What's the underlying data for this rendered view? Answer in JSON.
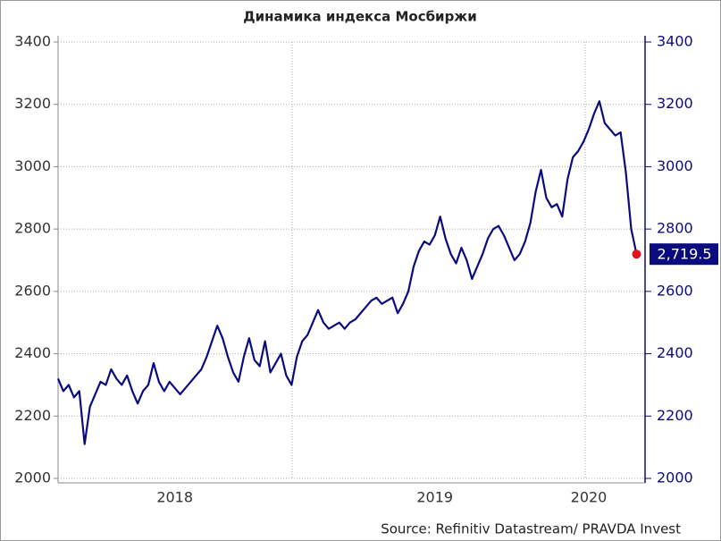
{
  "chart_data": {
    "type": "line",
    "title": "Динамика индекса Мосбиржи",
    "source": "Source: Refinitiv Datastream/ PRAVDA Invest",
    "categories": [
      null,
      null,
      null,
      null,
      null,
      null,
      null,
      null,
      null,
      null,
      null,
      null,
      null,
      null,
      null,
      null,
      null,
      null,
      null,
      null,
      null,
      null,
      "2018",
      null,
      null,
      null,
      null,
      null,
      null,
      null,
      null,
      null,
      null,
      null,
      null,
      null,
      null,
      null,
      null,
      null,
      null,
      null,
      null,
      null,
      null,
      null,
      null,
      null,
      null,
      null,
      null,
      null,
      null,
      null,
      null,
      null,
      null,
      null,
      null,
      null,
      null,
      null,
      null,
      null,
      null,
      null,
      null,
      null,
      null,
      null,
      null,
      "2019",
      null,
      null,
      null,
      null,
      null,
      null,
      null,
      null,
      null,
      null,
      null,
      null,
      null,
      null,
      null,
      null,
      null,
      null,
      null,
      null,
      null,
      null,
      null,
      null,
      null,
      null,
      null,
      null,
      "2020",
      null,
      null,
      null,
      null,
      null,
      null,
      null,
      null,
      null
    ],
    "values": [
      2320,
      2280,
      2300,
      2260,
      2280,
      2110,
      2230,
      2270,
      2310,
      2300,
      2350,
      2320,
      2300,
      2330,
      2280,
      2240,
      2280,
      2300,
      2370,
      2310,
      2280,
      2310,
      2290,
      2270,
      2290,
      2310,
      2330,
      2350,
      2390,
      2440,
      2490,
      2450,
      2390,
      2340,
      2310,
      2390,
      2450,
      2380,
      2360,
      2440,
      2340,
      2370,
      2400,
      2330,
      2300,
      2390,
      2440,
      2460,
      2500,
      2540,
      2500,
      2480,
      2490,
      2500,
      2480,
      2500,
      2510,
      2530,
      2550,
      2570,
      2580,
      2560,
      2570,
      2580,
      2530,
      2560,
      2600,
      2680,
      2730,
      2760,
      2750,
      2780,
      2840,
      2770,
      2720,
      2690,
      2740,
      2700,
      2640,
      2680,
      2720,
      2770,
      2800,
      2810,
      2780,
      2740,
      2700,
      2720,
      2760,
      2820,
      2920,
      2990,
      2900,
      2870,
      2880,
      2840,
      2960,
      3030,
      3050,
      3080,
      3120,
      3170,
      3210,
      3140,
      3120,
      3100,
      3110,
      2980,
      2800,
      2719.5
    ],
    "value_labels": [
      null,
      null,
      null,
      null,
      null,
      null,
      null,
      null,
      null,
      null,
      null,
      null,
      null,
      null,
      null,
      null,
      null,
      null,
      null,
      null,
      null,
      null,
      null,
      null,
      null,
      null,
      null,
      null,
      null,
      null,
      null,
      null,
      null,
      null,
      null,
      null,
      null,
      null,
      null,
      null,
      null,
      null,
      null,
      null,
      null,
      null,
      null,
      null,
      null,
      null,
      null,
      null,
      null,
      null,
      null,
      null,
      null,
      null,
      null,
      null,
      null,
      null,
      null,
      null,
      null,
      null,
      null,
      null,
      null,
      null,
      null,
      null,
      null,
      null,
      null,
      null,
      null,
      null,
      null,
      null,
      null,
      null,
      null,
      null,
      null,
      null,
      null,
      null,
      null,
      null,
      null,
      null,
      null,
      null,
      null,
      null,
      null,
      null,
      null,
      null,
      null,
      null,
      null,
      null,
      null,
      null,
      null,
      null,
      null,
      "2,719.5"
    ],
    "color": "#0b0b80",
    "marker_color": "#e3121c",
    "ylim": [
      2000,
      3400
    ],
    "yticks": [
      2000,
      2200,
      2400,
      2600,
      2800,
      3000,
      3200,
      3400
    ],
    "y2lim": [
      2000,
      3400
    ],
    "y2ticks": [
      2000,
      2200,
      2400,
      2600,
      2800,
      3000,
      3200,
      3400
    ],
    "grid": true
  }
}
